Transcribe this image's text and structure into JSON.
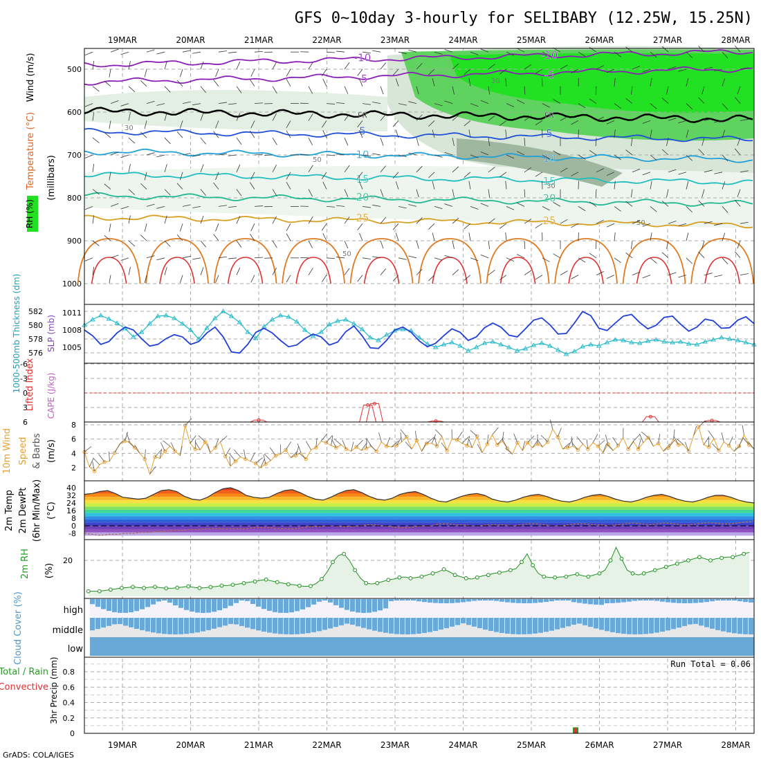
{
  "title": "GFS 0~10day 3-hourly for SELIBABY (12.25W, 15.25N)",
  "footer": "GrADS: COLA/IGES",
  "chart_data": {
    "type": "line",
    "x_dates": [
      "19MAR",
      "20MAR",
      "21MAR",
      "22MAR",
      "23MAR",
      "24MAR",
      "25MAR",
      "26MAR",
      "27MAR",
      "28MAR"
    ],
    "panels": {
      "upper_air": {
        "ylabel_parts": [
          "RH (%)",
          "Temperature (°C)",
          "Wind (m/s)",
          "(millibars)"
        ],
        "yticks": [
          "500",
          "600",
          "700",
          "800",
          "900",
          "1000"
        ],
        "ylim": [
          450,
          1000
        ],
        "temperature_contours": [
          {
            "label": "-10",
            "pressure": 490
          },
          {
            "label": "-5",
            "pressure": 530
          },
          {
            "label": "FR",
            "pressure": 598
          },
          {
            "label": "5",
            "pressure": 645
          },
          {
            "label": "10",
            "pressure": 692
          },
          {
            "label": "15",
            "pressure": 745
          },
          {
            "label": "20",
            "pressure": 795
          },
          {
            "label": "25",
            "pressure": 845
          }
        ],
        "rh_labels": [
          "30",
          "50"
        ]
      },
      "thickness_slp": {
        "ylabel_left": "1000-500mb Thickness (dm)",
        "ylabel_right": "SLP (mb)",
        "yticks_left": [
          "582",
          "580",
          "578",
          "576"
        ],
        "yticks_right": [
          "1011",
          "1008",
          "1005"
        ],
        "thickness_dm": [
          580.0,
          580.8,
          581.4,
          580.9,
          580.3,
          579.5,
          578.3,
          579.0,
          580.2,
          581.3,
          581.4,
          581.0,
          580.2,
          579.3,
          578.0,
          579.6,
          581.0,
          582.0,
          581.3,
          580.4,
          579.0,
          578.1,
          579.8,
          580.8,
          581.4,
          581.2,
          580.5,
          579.3,
          578.4,
          579.0,
          580.1,
          580.6,
          580.8,
          580.2,
          579.4,
          578.2,
          577.8,
          578.6,
          579.2,
          579.4,
          579.2,
          578.2,
          577.3,
          576.8,
          577.2,
          577.5,
          577.0,
          576.3,
          576.8,
          577.4,
          577.6,
          577.2,
          576.8,
          576.3,
          576.6,
          577.1,
          577.4,
          577.0,
          576.4,
          575.8,
          576.2,
          576.9,
          577.2,
          577.0,
          577.5,
          577.9,
          577.8,
          577.5,
          577.4,
          577.7,
          577.9,
          577.6,
          577.5,
          577.6,
          577.3,
          577.2,
          577.6,
          577.9,
          578.2,
          578.0,
          577.8,
          577.5,
          577.2
        ],
        "slp_mb": [
          1008,
          1007,
          1005.5,
          1006,
          1007.5,
          1008.5,
          1008,
          1006.5,
          1005.2,
          1005.5,
          1006.5,
          1007.2,
          1006.8,
          1005.5,
          1006,
          1007.5,
          1008.5,
          1006.8,
          1004.2,
          1004,
          1005.5,
          1007.6,
          1008.3,
          1007.5,
          1006.2,
          1005.1,
          1005.4,
          1006.5,
          1007.3,
          1006.8,
          1005.4,
          1005.9,
          1007.7,
          1008.7,
          1007,
          1004.9,
          1004.8,
          1006.2,
          1008,
          1008.5,
          1007.6,
          1006.1,
          1005.1,
          1005.7,
          1007,
          1008.2,
          1007.6,
          1006.2,
          1006.8,
          1008.4,
          1009.2,
          1008.5,
          1007.1,
          1006.8,
          1008.2,
          1009.7,
          1010.1,
          1008.9,
          1007.3,
          1007.4,
          1009.2,
          1011.2,
          1010.5,
          1008.3,
          1007.9,
          1009.2,
          1010.4,
          1010.7,
          1009.3,
          1008.2,
          1008.8,
          1010.2,
          1010.4,
          1009,
          1007.8,
          1008.5,
          1009.9,
          1009.6,
          1008.3,
          1008.4,
          1009.7,
          1010.3,
          1009.1
        ]
      },
      "cape_li": {
        "ylabel_left": "Lifted Index",
        "ylabel_right": "CAPE (J/kg)",
        "yticks": [
          "-6",
          "-3",
          "0",
          "3",
          "6"
        ],
        "li_spikes": [
          {
            "x": 21.0,
            "v": 5.6
          },
          {
            "x": 22.6,
            "v": 2.5
          },
          {
            "x": 22.7,
            "v": 2.2
          },
          {
            "x": 23.6,
            "v": 5.8
          },
          {
            "x": 26.75,
            "v": 4.9
          },
          {
            "x": 27.65,
            "v": 5.7
          }
        ]
      },
      "wind10m": {
        "ylabel_parts": [
          "10m Wind",
          "Speed",
          "& Barbs",
          "(m/s)"
        ],
        "yticks": [
          "8",
          "6",
          "4",
          "2"
        ],
        "speed_ms": [
          4.2,
          2.1,
          1.5,
          2.4,
          2.8,
          2.9,
          4.1,
          5.3,
          5.7,
          5.6,
          4.8,
          4.0,
          3.2,
          1.1,
          3.5,
          3.3,
          4.3,
          5.0,
          4.3,
          3.7,
          7.9,
          5.4,
          4.6,
          4.5,
          5.6,
          4.1,
          4.8,
          5.6,
          3.6,
          2.2,
          2.9,
          3.5,
          3.2,
          2.9,
          2.6,
          2.0,
          2.5,
          3.0,
          3.7,
          3.9,
          4.5,
          3.4,
          3.7,
          4.1,
          3.2,
          4.5,
          4.8,
          5.7,
          5.5,
          5.1,
          4.8,
          5.2,
          4.6,
          4.3,
          4.9,
          4.4,
          4.7,
          5.0,
          4.3,
          5.6,
          5.0,
          4.9,
          5.1,
          5.6,
          6.3,
          4.6,
          5.8,
          4.3,
          5.4,
          5.4,
          5.0,
          6.4,
          4.4,
          6.0,
          5.9,
          5.4,
          5.1,
          4.8,
          6.4,
          4.1,
          5.3,
          6.6,
          5.2,
          5.7,
          4.7,
          3.9,
          5.5,
          4.4,
          5.5,
          4.8,
          5.3,
          4.9,
          5.6,
          7.4,
          6.3,
          4.6,
          4.8,
          5.0,
          4.5,
          5.3,
          4.6,
          5.5,
          5.0,
          4.1,
          5.3,
          4.4,
          5.1,
          6.2,
          4.6,
          5.7,
          4.6,
          5.5,
          6.2,
          5.0,
          5.4,
          4.3,
          4.8,
          6.0,
          5.2,
          5.2,
          4.3,
          6.5,
          7.7,
          5.2,
          4.9,
          6.1,
          4.4,
          5.6,
          5.1,
          4.3,
          5.0,
          6.6,
          5.2,
          4.6
        ]
      },
      "temp2m": {
        "ylabel_parts": [
          "2m Temp",
          "2m DewPt",
          "(6hr Min/Max)",
          "(°C)"
        ],
        "yticks": [
          "40",
          "32",
          "24",
          "16",
          "8",
          "0",
          "-8"
        ],
        "temperature_c": [
          33,
          34,
          36,
          37,
          34,
          30,
          29,
          28,
          29,
          33,
          37,
          38,
          36,
          31,
          28,
          27,
          30,
          35,
          39,
          40,
          37,
          32,
          30,
          29,
          30,
          34,
          37,
          38,
          35,
          31,
          28,
          27,
          30,
          34,
          37,
          38,
          35,
          31,
          28,
          27,
          29,
          33,
          35,
          36,
          33,
          29,
          26,
          25,
          28,
          31,
          33,
          34,
          32,
          28,
          26,
          25,
          27,
          30,
          32,
          33,
          31,
          28,
          26,
          25,
          27,
          30,
          32,
          33,
          31,
          28,
          26,
          25,
          27,
          30,
          32,
          33,
          31,
          28,
          26,
          25,
          27,
          30,
          32,
          32,
          30,
          27,
          25,
          24
        ],
        "dewpoint_c": [
          -8,
          -9,
          -10,
          -9,
          -9,
          -8,
          -8,
          -7,
          -7,
          -6,
          -6,
          -5,
          -5,
          -4,
          -4,
          -3,
          -3,
          -3,
          -3,
          -3,
          -3,
          -2,
          -2,
          -2,
          -3,
          -3,
          -3,
          -2,
          -1,
          -1,
          0,
          0,
          -1,
          -1,
          0,
          1,
          1,
          0,
          -1,
          -2,
          -2,
          -1,
          0,
          0,
          2,
          2,
          1,
          1,
          0,
          0,
          1,
          1,
          1,
          0,
          1,
          2,
          2,
          1,
          0,
          0,
          1,
          2,
          2,
          1,
          1,
          0,
          1,
          2,
          3,
          2,
          1,
          2,
          3,
          2,
          1,
          1,
          2,
          3,
          3,
          2,
          2,
          3,
          4,
          5
        ]
      },
      "rh2m": {
        "ylabel_parts": [
          "2m RH",
          "(%)"
        ],
        "yticks": [
          "20"
        ],
        "rh_percent": [
          1,
          1,
          1,
          1.5,
          2,
          2.5,
          3,
          3.3,
          3.7,
          3.3,
          3,
          3.5,
          3.7,
          3.2,
          2.8,
          2.8,
          3.2,
          3.6,
          4,
          3.4,
          3,
          3.2,
          3.6,
          3.9,
          4.5,
          4.5,
          5,
          5.4,
          6,
          6.6,
          7,
          7.8,
          8.2,
          7.3,
          6.6,
          6,
          5.3,
          5,
          4.4,
          4,
          4.2,
          5.8,
          8.5,
          13,
          19,
          23,
          24,
          20,
          14,
          9,
          6,
          5.5,
          6,
          7,
          8,
          8.5,
          9.5,
          9.8,
          9,
          9.5,
          10,
          11,
          12,
          13,
          14.5,
          13,
          11,
          10,
          9,
          8.5,
          9.5,
          10.5,
          11,
          12,
          12.5,
          13,
          14,
          15,
          19,
          24,
          17,
          12,
          10,
          9.5,
          9.5,
          9.8,
          10,
          11,
          11.5,
          10.5,
          10,
          11,
          12,
          14,
          20,
          28,
          21,
          14,
          12,
          11,
          12,
          13,
          14,
          15,
          16,
          17,
          18,
          19,
          20,
          21,
          22,
          21,
          20,
          21,
          21.5,
          22,
          22,
          23,
          24,
          25
        ]
      },
      "cloud_cover": {
        "ylabel": "Cloud Cover (%)",
        "levels": [
          "high",
          "middle",
          "low"
        ]
      },
      "precip": {
        "ylabel_parts": [
          "Total / Rain",
          "Convective",
          "3hr Precip (mm)"
        ],
        "yticks": [
          "0.8",
          "0.6",
          "0.4",
          "0.2",
          "0"
        ],
        "run_total": "Run Total = 0.06",
        "bars": [
          {
            "x": 25.65,
            "total": 0.06,
            "convective": 0.06
          }
        ]
      }
    }
  }
}
